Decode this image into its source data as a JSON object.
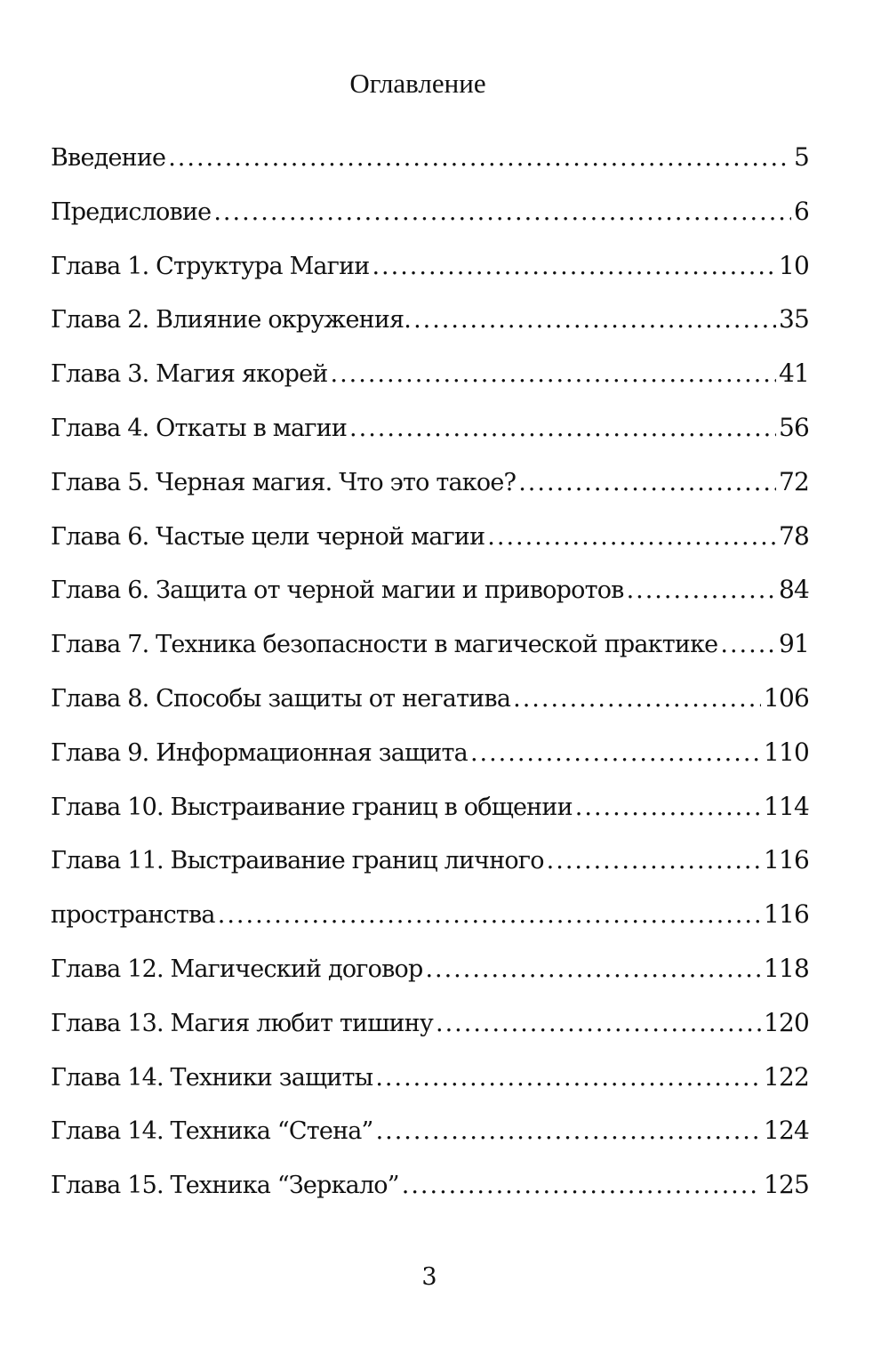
{
  "title": "Оглавление",
  "entries": [
    {
      "label": "Введение",
      "page": "5"
    },
    {
      "label": "Предисловие",
      "page": "6"
    },
    {
      "label": "Глава 1. Структура Магии",
      "page": "10"
    },
    {
      "label": "Глава 2. Влияние окружения.",
      "page": "35"
    },
    {
      "label": "Глава 3. Магия якорей",
      "page": "41"
    },
    {
      "label": "Глава 4. Откаты в магии",
      "page": "56"
    },
    {
      "label": "Глава 5. Черная магия. Что это такое?",
      "page": "72"
    },
    {
      "label": "Глава 6. Частые цели черной магии",
      "page": "78"
    },
    {
      "label": "Глава 6. Защита от черной магии и приворотов",
      "page": "84"
    },
    {
      "label": "Глава 7. Техника безопасности в магической практике",
      "page": "91"
    },
    {
      "label": "Глава 8. Способы защиты от негатива",
      "page": "106"
    },
    {
      "label": "Глава 9. Информационная защита",
      "page": "110"
    },
    {
      "label": "Глава 10. Выстраивание границ в общении",
      "page": "114"
    },
    {
      "label": "Глава 11. Выстраивание границ личного",
      "page": "116"
    },
    {
      "label": "пространства",
      "page": "116"
    },
    {
      "label": "Глава 12. Магический договор",
      "page": "118"
    },
    {
      "label": "Глава 13. Магия любит тишину",
      "page": "120"
    },
    {
      "label": "Глава 14. Техники защиты",
      "page": "122"
    },
    {
      "label": "Глава 14. Техника “Стена”",
      "page": "124"
    },
    {
      "label": "Глава 15. Техника “Зеркало”",
      "page": "125"
    }
  ],
  "page_number": "3"
}
